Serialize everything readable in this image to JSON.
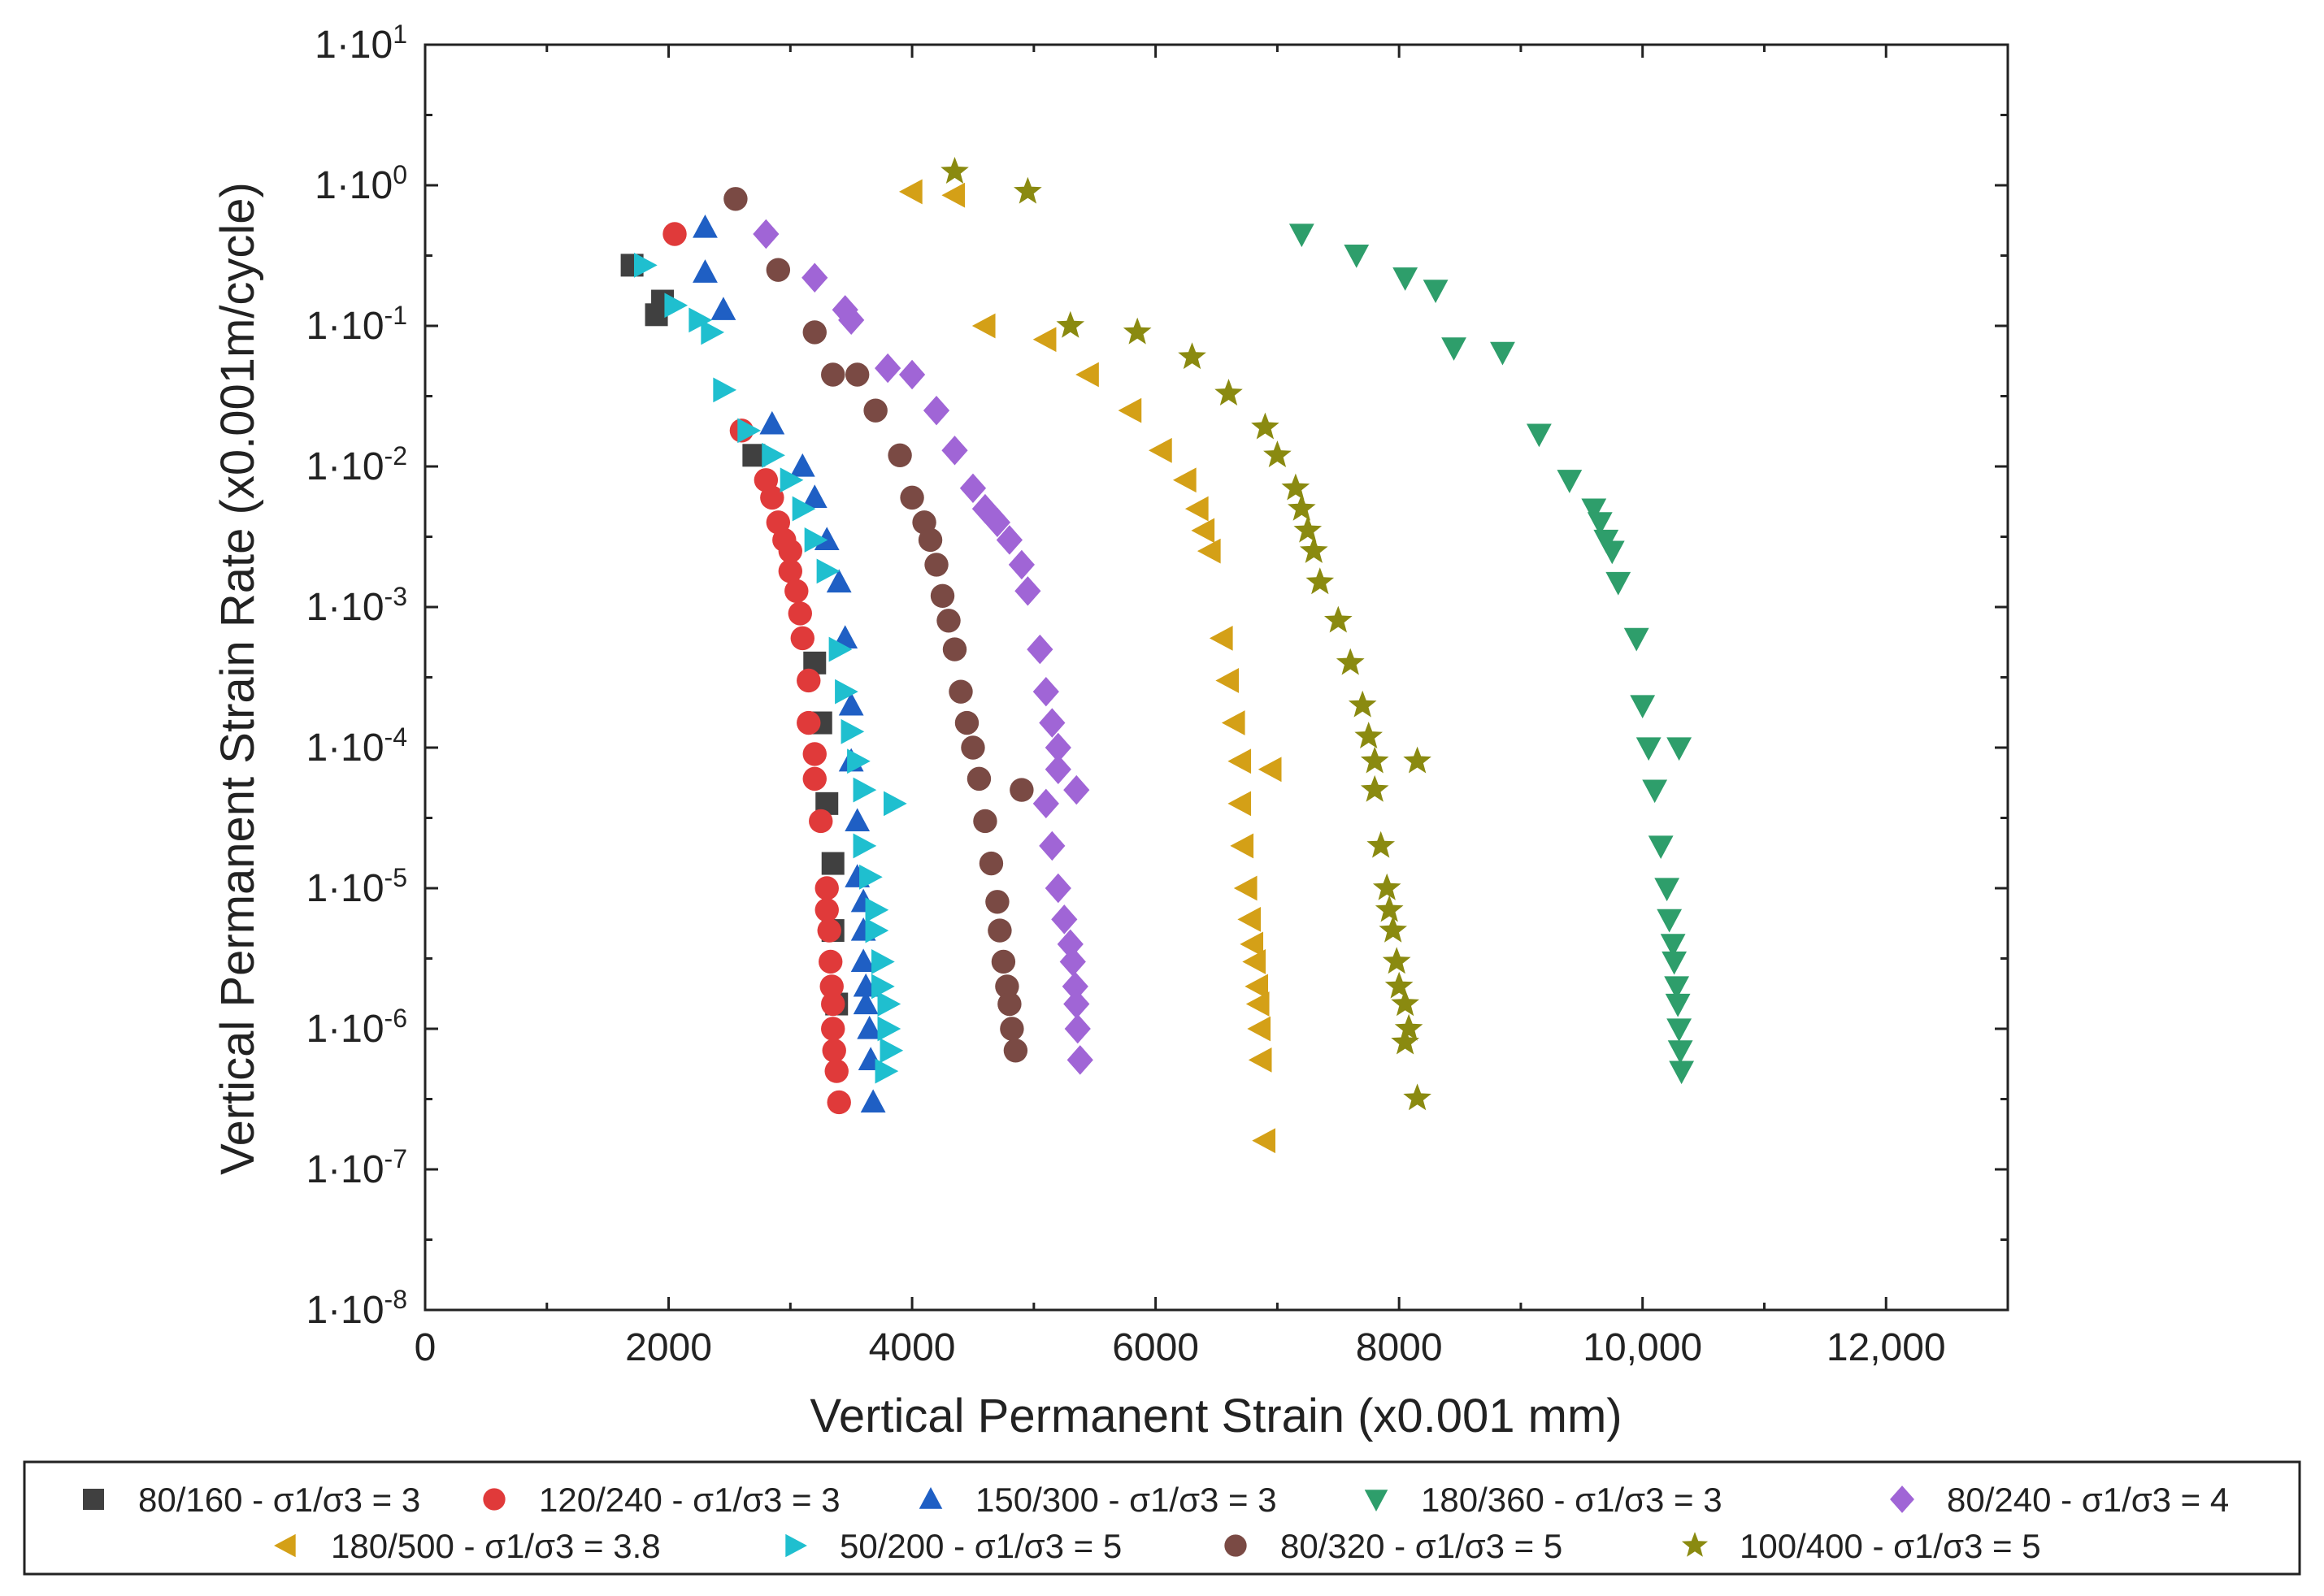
{
  "chart_data": {
    "type": "scatter",
    "title": "",
    "xlabel": "Vertical Permanent Strain  (x0.001 mm)",
    "ylabel": "Vertical Permanent Strain Rate (x0.001m/cycle)",
    "xlim": [
      0,
      13000
    ],
    "ylim_log10": [
      -8,
      1
    ],
    "y_scale": "log",
    "grid": false,
    "legend_position": "bottom",
    "x_ticks": [
      {
        "value": 0,
        "label": "0"
      },
      {
        "value": 2000,
        "label": "2000"
      },
      {
        "value": 4000,
        "label": "4000"
      },
      {
        "value": 6000,
        "label": "6000"
      },
      {
        "value": 8000,
        "label": "8000"
      },
      {
        "value": 10000,
        "label": "10,000"
      },
      {
        "value": 12000,
        "label": "12,000"
      }
    ],
    "y_ticks": [
      {
        "exp": 1,
        "mant": "1·10",
        "sup": "1"
      },
      {
        "exp": 0,
        "mant": "1·10",
        "sup": "0"
      },
      {
        "exp": -1,
        "mant": "1·10",
        "sup": "-1"
      },
      {
        "exp": -2,
        "mant": "1·10",
        "sup": "-2"
      },
      {
        "exp": -3,
        "mant": "1·10",
        "sup": "-3"
      },
      {
        "exp": -4,
        "mant": "1·10",
        "sup": "-4"
      },
      {
        "exp": -5,
        "mant": "1·10",
        "sup": "-5"
      },
      {
        "exp": -6,
        "mant": "1·10",
        "sup": "-6"
      },
      {
        "exp": -7,
        "mant": "1·10",
        "sup": "-7"
      },
      {
        "exp": -8,
        "mant": "1·10",
        "sup": "-8"
      }
    ],
    "series": [
      {
        "name": "80/160 - σ1/σ3 = 3",
        "marker": "square",
        "color": "#404040",
        "points": [
          [
            1700,
            0.27
          ],
          [
            1900,
            0.12
          ],
          [
            1950,
            0.15
          ],
          [
            2700,
            0.012
          ],
          [
            3200,
            0.0004
          ],
          [
            3250,
            0.00015
          ],
          [
            3300,
            4e-05
          ],
          [
            3350,
            1.5e-05
          ],
          [
            3350,
            5e-06
          ],
          [
            3380,
            1.5e-06
          ]
        ]
      },
      {
        "name": "120/240 - σ1/σ3 = 3",
        "marker": "circle",
        "color": "#e03a3a",
        "points": [
          [
            2050,
            0.45
          ],
          [
            2600,
            0.018
          ],
          [
            2800,
            0.008
          ],
          [
            2850,
            0.006
          ],
          [
            2900,
            0.004
          ],
          [
            2950,
            0.003
          ],
          [
            3000,
            0.0025
          ],
          [
            3000,
            0.0018
          ],
          [
            3050,
            0.0013
          ],
          [
            3080,
            0.0009
          ],
          [
            3100,
            0.0006
          ],
          [
            3150,
            0.0003
          ],
          [
            3150,
            0.00015
          ],
          [
            3200,
            9e-05
          ],
          [
            3200,
            6e-05
          ],
          [
            3250,
            3e-05
          ],
          [
            3300,
            1e-05
          ],
          [
            3300,
            7e-06
          ],
          [
            3320,
            5e-06
          ],
          [
            3330,
            3e-06
          ],
          [
            3340,
            2e-06
          ],
          [
            3350,
            1.5e-06
          ],
          [
            3350,
            1e-06
          ],
          [
            3360,
            7e-07
          ],
          [
            3380,
            5e-07
          ],
          [
            3400,
            3e-07
          ]
        ]
      },
      {
        "name": "150/300 - σ1/σ3 = 3",
        "marker": "triangle-up",
        "color": "#1f5fc4",
        "points": [
          [
            2300,
            0.5
          ],
          [
            2300,
            0.24
          ],
          [
            2450,
            0.13
          ],
          [
            2850,
            0.02
          ],
          [
            3100,
            0.01
          ],
          [
            3200,
            0.006
          ],
          [
            3300,
            0.003
          ],
          [
            3400,
            0.0015
          ],
          [
            3450,
            0.0006
          ],
          [
            3500,
            0.0002
          ],
          [
            3500,
            8e-05
          ],
          [
            3550,
            3e-05
          ],
          [
            3550,
            1.2e-05
          ],
          [
            3600,
            8e-06
          ],
          [
            3600,
            5e-06
          ],
          [
            3600,
            3e-06
          ],
          [
            3620,
            2e-06
          ],
          [
            3620,
            1.5e-06
          ],
          [
            3650,
            1e-06
          ],
          [
            3660,
            6e-07
          ],
          [
            3680,
            3e-07
          ]
        ]
      },
      {
        "name": "180/360 - σ1/σ3 = 3",
        "marker": "triangle-down",
        "color": "#2e9e6b",
        "points": [
          [
            7200,
            0.45
          ],
          [
            7650,
            0.32
          ],
          [
            8050,
            0.22
          ],
          [
            8300,
            0.18
          ],
          [
            8450,
            0.07
          ],
          [
            8850,
            0.065
          ],
          [
            9150,
            0.017
          ],
          [
            9400,
            0.008
          ],
          [
            9600,
            0.005
          ],
          [
            9650,
            0.004
          ],
          [
            9700,
            0.003
          ],
          [
            9750,
            0.0025
          ],
          [
            9800,
            0.0015
          ],
          [
            9950,
            0.0006
          ],
          [
            10000,
            0.0002
          ],
          [
            10050,
            0.0001
          ],
          [
            10100,
            5e-05
          ],
          [
            10300,
            0.0001
          ],
          [
            10150,
            2e-05
          ],
          [
            10200,
            1e-05
          ],
          [
            10220,
            6e-06
          ],
          [
            10250,
            4e-06
          ],
          [
            10260,
            3e-06
          ],
          [
            10280,
            2e-06
          ],
          [
            10290,
            1.5e-06
          ],
          [
            10300,
            1e-06
          ],
          [
            10310,
            7e-07
          ],
          [
            10320,
            5e-07
          ]
        ]
      },
      {
        "name": "80/240 - σ1/σ3 = 4",
        "marker": "diamond",
        "color": "#a065d6",
        "points": [
          [
            2800,
            0.45
          ],
          [
            3200,
            0.22
          ],
          [
            3450,
            0.13
          ],
          [
            3500,
            0.11
          ],
          [
            3800,
            0.05
          ],
          [
            4000,
            0.045
          ],
          [
            4200,
            0.025
          ],
          [
            4350,
            0.013
          ],
          [
            4500,
            0.007
          ],
          [
            4600,
            0.005
          ],
          [
            4700,
            0.004
          ],
          [
            4800,
            0.003
          ],
          [
            4900,
            0.002
          ],
          [
            4950,
            0.0013
          ],
          [
            5050,
            0.0005
          ],
          [
            5100,
            0.00025
          ],
          [
            5150,
            0.00015
          ],
          [
            5200,
            0.0001
          ],
          [
            5200,
            7e-05
          ],
          [
            5350,
            5e-05
          ],
          [
            5100,
            4e-05
          ],
          [
            5150,
            2e-05
          ],
          [
            5200,
            1e-05
          ],
          [
            5250,
            6e-06
          ],
          [
            5300,
            4e-06
          ],
          [
            5320,
            3e-06
          ],
          [
            5340,
            2e-06
          ],
          [
            5350,
            1.5e-06
          ],
          [
            5360,
            1e-06
          ],
          [
            5380,
            6e-07
          ]
        ]
      },
      {
        "name": "180/500 - σ1/σ3 = 3.8",
        "marker": "triangle-left",
        "color": "#d4a017",
        "points": [
          [
            4000,
            0.9
          ],
          [
            4350,
            0.85
          ],
          [
            4600,
            0.1
          ],
          [
            5100,
            0.08
          ],
          [
            5450,
            0.045
          ],
          [
            5800,
            0.025
          ],
          [
            6050,
            0.013
          ],
          [
            6250,
            0.008
          ],
          [
            6350,
            0.005
          ],
          [
            6400,
            0.0035
          ],
          [
            6450,
            0.0025
          ],
          [
            6550,
            0.0006
          ],
          [
            6600,
            0.0003
          ],
          [
            6650,
            0.00015
          ],
          [
            6700,
            8e-05
          ],
          [
            6950,
            7e-05
          ],
          [
            6700,
            4e-05
          ],
          [
            6720,
            2e-05
          ],
          [
            6750,
            1e-05
          ],
          [
            6780,
            6e-06
          ],
          [
            6800,
            4e-06
          ],
          [
            6820,
            3e-06
          ],
          [
            6840,
            2e-06
          ],
          [
            6850,
            1.5e-06
          ],
          [
            6860,
            1e-06
          ],
          [
            6870,
            6e-07
          ],
          [
            6900,
            1.6e-07
          ]
        ]
      },
      {
        "name": "50/200 - σ1/σ3 = 5",
        "marker": "triangle-right",
        "color": "#1fbfcf",
        "points": [
          [
            1800,
            0.27
          ],
          [
            2050,
            0.14
          ],
          [
            2250,
            0.11
          ],
          [
            2350,
            0.09
          ],
          [
            2450,
            0.035
          ],
          [
            2650,
            0.018
          ],
          [
            2850,
            0.012
          ],
          [
            3000,
            0.008
          ],
          [
            3100,
            0.005
          ],
          [
            3200,
            0.003
          ],
          [
            3300,
            0.0018
          ],
          [
            3400,
            0.0005
          ],
          [
            3450,
            0.00025
          ],
          [
            3500,
            0.00013
          ],
          [
            3550,
            8e-05
          ],
          [
            3600,
            5e-05
          ],
          [
            3850,
            4e-05
          ],
          [
            3600,
            2e-05
          ],
          [
            3650,
            1.2e-05
          ],
          [
            3700,
            7e-06
          ],
          [
            3700,
            5e-06
          ],
          [
            3750,
            3e-06
          ],
          [
            3750,
            2e-06
          ],
          [
            3800,
            1.5e-06
          ],
          [
            3800,
            1e-06
          ],
          [
            3820,
            7e-07
          ],
          [
            3780,
            5e-07
          ]
        ]
      },
      {
        "name": "80/320 - σ1/σ3 = 5",
        "marker": "circle",
        "color": "#7a4a44",
        "points": [
          [
            2550,
            0.8
          ],
          [
            2900,
            0.25
          ],
          [
            3200,
            0.09
          ],
          [
            3350,
            0.045
          ],
          [
            3550,
            0.045
          ],
          [
            3700,
            0.025
          ],
          [
            3900,
            0.012
          ],
          [
            4000,
            0.006
          ],
          [
            4100,
            0.004
          ],
          [
            4150,
            0.003
          ],
          [
            4200,
            0.002
          ],
          [
            4250,
            0.0012
          ],
          [
            4300,
            0.0008
          ],
          [
            4350,
            0.0005
          ],
          [
            4400,
            0.00025
          ],
          [
            4450,
            0.00015
          ],
          [
            4500,
            0.0001
          ],
          [
            4550,
            6e-05
          ],
          [
            4900,
            5e-05
          ],
          [
            4600,
            3e-05
          ],
          [
            4650,
            1.5e-05
          ],
          [
            4700,
            8e-06
          ],
          [
            4720,
            5e-06
          ],
          [
            4750,
            3e-06
          ],
          [
            4780,
            2e-06
          ],
          [
            4800,
            1.5e-06
          ],
          [
            4820,
            1e-06
          ],
          [
            4850,
            7e-07
          ]
        ]
      },
      {
        "name": "100/400 - σ1/σ3 = 5",
        "marker": "star",
        "color": "#8a8a10",
        "points": [
          [
            4350,
            1.25
          ],
          [
            4950,
            0.9
          ],
          [
            5300,
            0.1
          ],
          [
            5850,
            0.09
          ],
          [
            6300,
            0.06
          ],
          [
            6600,
            0.033
          ],
          [
            6900,
            0.019
          ],
          [
            7000,
            0.012
          ],
          [
            7150,
            0.007
          ],
          [
            7200,
            0.005
          ],
          [
            7250,
            0.0035
          ],
          [
            7300,
            0.0025
          ],
          [
            7350,
            0.0015
          ],
          [
            7500,
            0.0008
          ],
          [
            7600,
            0.0004
          ],
          [
            7700,
            0.0002
          ],
          [
            7750,
            0.00012
          ],
          [
            7800,
            8e-05
          ],
          [
            8150,
            8e-05
          ],
          [
            7800,
            5e-05
          ],
          [
            7850,
            2e-05
          ],
          [
            7900,
            1e-05
          ],
          [
            7920,
            7e-06
          ],
          [
            7950,
            5e-06
          ],
          [
            7980,
            3e-06
          ],
          [
            8000,
            2e-06
          ],
          [
            8050,
            1.5e-06
          ],
          [
            8080,
            1e-06
          ],
          [
            8050,
            8e-07
          ],
          [
            8150,
            3.2e-07
          ]
        ]
      }
    ]
  }
}
